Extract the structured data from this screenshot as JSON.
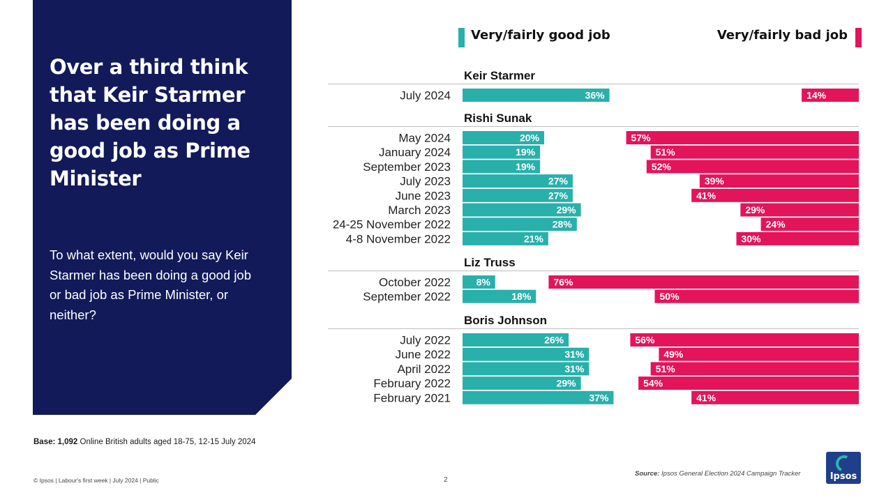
{
  "headline": "Over a third think that Keir Starmer has been doing a good job as Prime Minister",
  "question": "To what extent, would you say Keir Starmer has been doing a good job or bad job as Prime Minister, or neither?",
  "base_note": {
    "label": "Base:",
    "count": "1,092",
    "text": "Online British adults aged 18-75, 12-15 July 2024"
  },
  "footer": {
    "copyright": "© Ipsos | Labour's first week | July 2024 | Public",
    "page_number": "2"
  },
  "source": {
    "label": "Source:",
    "text": "Ipsos General Election 2024 Campaign Tracker"
  },
  "logo_text": "Ipsos",
  "colors": {
    "panel": "#121a5a",
    "good": "#2ab0ab",
    "bad": "#e3145a"
  },
  "chart_data": {
    "type": "bar",
    "orientation": "horizontal",
    "series": [
      {
        "name": "Very/fairly good job",
        "color": "#2ab0ab"
      },
      {
        "name": "Very/fairly bad job",
        "color": "#e3145a"
      }
    ],
    "value_unit": "%",
    "xlim": [
      0,
      100
    ],
    "groups": [
      {
        "name": "Keir Starmer",
        "rows": [
          {
            "label": "July 2024",
            "good": 36,
            "bad": 14
          }
        ]
      },
      {
        "name": "Rishi Sunak",
        "rows": [
          {
            "label": "May 2024",
            "good": 20,
            "bad": 57
          },
          {
            "label": "January 2024",
            "good": 19,
            "bad": 51
          },
          {
            "label": "September 2023",
            "good": 19,
            "bad": 52
          },
          {
            "label": "July 2023",
            "good": 27,
            "bad": 39
          },
          {
            "label": "June 2023",
            "good": 27,
            "bad": 41
          },
          {
            "label": "March 2023",
            "good": 29,
            "bad": 29
          },
          {
            "label": "24-25 November 2022",
            "good": 28,
            "bad": 24
          },
          {
            "label": "4-8 November 2022",
            "good": 21,
            "bad": 30
          }
        ]
      },
      {
        "name": "Liz Truss",
        "rows": [
          {
            "label": "October 2022",
            "good": 8,
            "bad": 76
          },
          {
            "label": "September 2022",
            "good": 18,
            "bad": 50
          }
        ]
      },
      {
        "name": "Boris Johnson",
        "rows": [
          {
            "label": "July 2022",
            "good": 26,
            "bad": 56
          },
          {
            "label": "June 2022",
            "good": 31,
            "bad": 49
          },
          {
            "label": "April 2022",
            "good": 31,
            "bad": 51
          },
          {
            "label": "February 2022",
            "good": 29,
            "bad": 54
          },
          {
            "label": "February 2021",
            "good": 37,
            "bad": 41
          }
        ]
      }
    ]
  }
}
